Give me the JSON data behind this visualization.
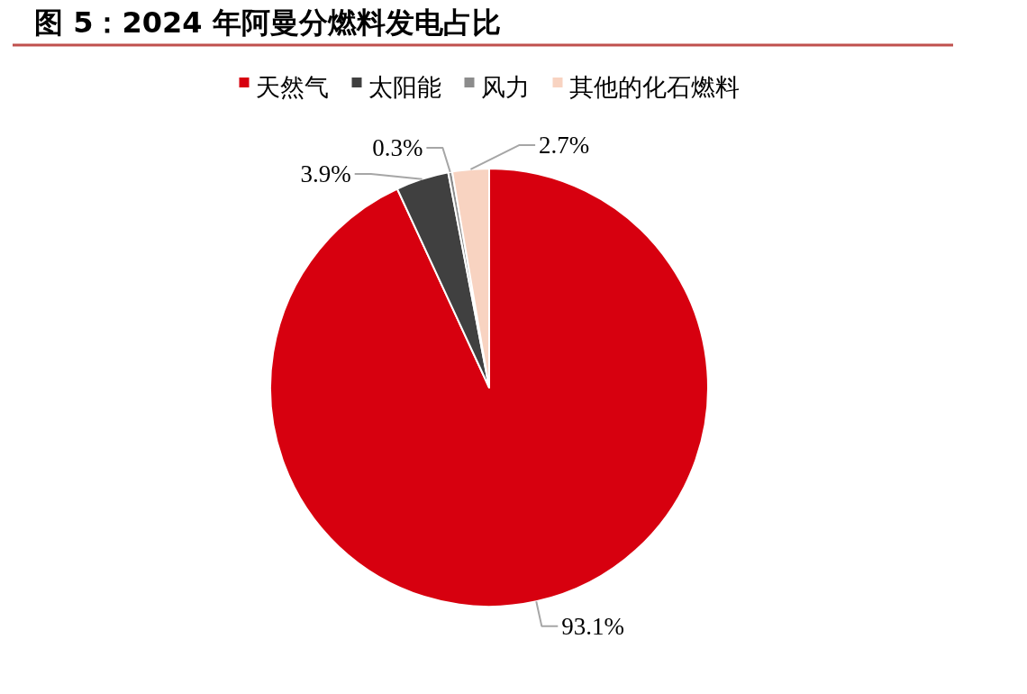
{
  "chart_data": {
    "type": "pie",
    "title": "图 5：2024 年阿曼分燃料发电占比",
    "categories": [
      "天然气",
      "太阳能",
      "风力",
      "其他的化石燃料"
    ],
    "values": [
      93.1,
      3.9,
      0.3,
      2.7
    ],
    "colors": [
      "#d7000f",
      "#404040",
      "#8c8c8c",
      "#f8d3c1"
    ],
    "value_labels": [
      "93.1%",
      "3.9%",
      "0.3%",
      "2.7%"
    ],
    "legend": "top"
  }
}
